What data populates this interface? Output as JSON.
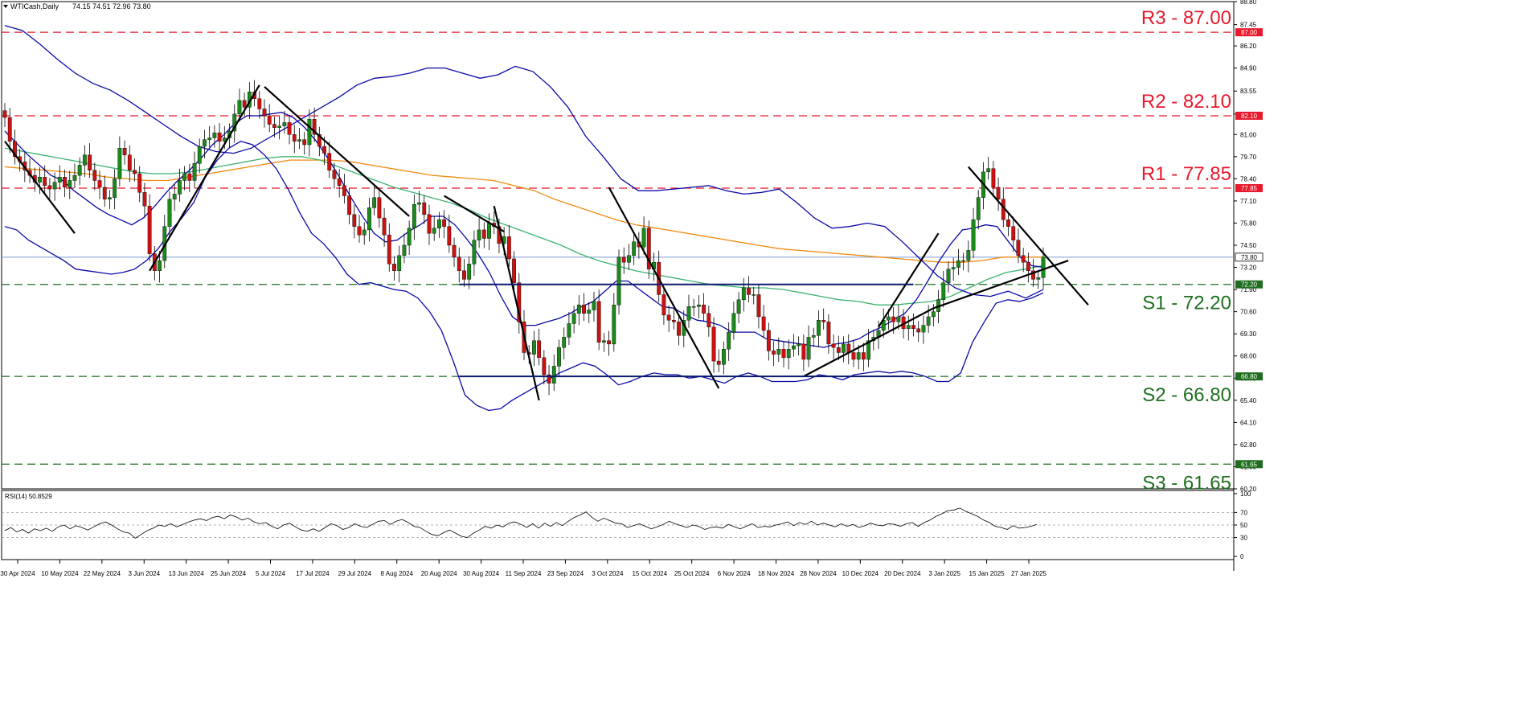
{
  "header": {
    "symbol": "WTICash,Daily",
    "ohlc": "74.15 74.51 72.96 73.80"
  },
  "rsi_header": {
    "label": "RSI(14) 50.8529"
  },
  "colors": {
    "candle_up": "#1a8a1a",
    "candle_down": "#cc1111",
    "resistance": "#e8192c",
    "support": "#1f6e1f",
    "bollinger": "#0a0aa8",
    "ma_orange": "#f08a10",
    "ma_green": "#3cb371",
    "rsi_line": "#000000",
    "price_marker": "#1f5fbf"
  },
  "chart_data": [
    {
      "type": "candlestick",
      "title": "WTICash,Daily",
      "ylim": [
        60.2,
        88.8
      ],
      "y_ticks": [
        "88.80",
        "87.45",
        "86.20",
        "84.90",
        "83.55",
        "82.20",
        "81.00",
        "79.70",
        "78.40",
        "77.10",
        "75.80",
        "74.50",
        "73.20",
        "71.90",
        "70.60",
        "69.30",
        "68.00",
        "66.70",
        "65.40",
        "64.10",
        "62.80",
        "61.50",
        "60.20"
      ],
      "x_ticks": [
        "30 Apr 2024",
        "10 May 2024",
        "22 May 2024",
        "3 Jun 2024",
        "13 Jun 2024",
        "25 Jun 2024",
        "5 Jul 2024",
        "17 Jul 2024",
        "29 Jul 2024",
        "8 Aug 2024",
        "20 Aug 2024",
        "30 Aug 2024",
        "11 Sep 2024",
        "23 Sep 2024",
        "3 Oct 2024",
        "15 Oct 2024",
        "25 Oct 2024",
        "6 Nov 2024",
        "18 Nov 2024",
        "28 Nov 2024",
        "10 Dec 2024",
        "20 Dec 2024",
        "3 Jan 2025",
        "15 Jan 2025",
        "27 Jan 2025"
      ],
      "levels": [
        {
          "label": "R3 - 87.00",
          "value": 87.0,
          "tag": "87.00",
          "kind": "resistance"
        },
        {
          "label": "R2 - 82.10",
          "value": 82.1,
          "tag": "82.10",
          "kind": "resistance"
        },
        {
          "label": "R1 - 77.85",
          "value": 77.85,
          "tag": "77.85",
          "kind": "resistance"
        },
        {
          "label": "S1 - 72.20",
          "value": 72.2,
          "tag": "72.20",
          "kind": "support"
        },
        {
          "label": "S2 - 66.80",
          "value": 66.8,
          "tag": "66.80",
          "kind": "support"
        },
        {
          "label": "S3 - 61.65",
          "value": 61.65,
          "tag": "61.65",
          "kind": "support"
        }
      ],
      "current_price": {
        "value": 73.8,
        "tag": "73.80"
      },
      "series": [
        {
          "name": "price",
          "values": [
            82.0,
            80.6,
            79.7,
            79.4,
            78.9,
            78.6,
            78.2,
            78.5,
            78.0,
            77.8,
            78.2,
            78.5,
            77.9,
            78.3,
            78.6,
            79.2,
            79.8,
            78.9,
            78.3,
            77.9,
            77.2,
            77.3,
            78.4,
            80.2,
            79.8,
            78.9,
            78.7,
            77.6,
            76.8,
            74.0,
            73.0,
            73.6,
            75.6,
            77.2,
            77.5,
            78.3,
            78.7,
            78.3,
            79.3,
            80.3,
            80.7,
            80.8,
            81.1,
            80.6,
            80.8,
            81.2,
            82.2,
            83.0,
            82.6,
            83.5,
            83.1,
            82.5,
            82.1,
            81.6,
            81.4,
            81.5,
            81.7,
            81.0,
            80.6,
            80.7,
            80.4,
            81.9,
            81.0,
            80.3,
            79.9,
            78.9,
            78.4,
            78.0,
            77.4,
            76.3,
            75.6,
            75.1,
            75.4,
            76.7,
            77.3,
            76.1,
            75.1,
            73.4,
            73.0,
            73.9,
            74.5,
            75.5,
            76.9,
            77.0,
            76.3,
            75.2,
            75.5,
            76.0,
            75.6,
            74.5,
            73.8,
            73.0,
            72.5,
            73.4,
            74.8,
            75.4,
            74.9,
            75.8,
            75.6,
            74.6,
            75.0,
            73.7,
            72.3,
            70.0,
            68.2,
            68.1,
            68.9,
            67.9,
            66.9,
            66.4,
            67.4,
            68.5,
            69.1,
            69.9,
            70.5,
            71.0,
            70.5,
            70.7,
            71.2,
            68.8,
            68.9,
            68.7,
            71.0,
            73.8,
            73.5,
            73.9,
            74.7,
            74.4,
            75.5,
            73.1,
            73.5,
            71.6,
            70.4,
            70.1,
            70.0,
            69.2,
            70.1,
            70.9,
            70.9,
            71.0,
            70.5,
            69.7,
            67.7,
            67.5,
            68.4,
            69.4,
            70.5,
            71.3,
            72.0,
            71.6,
            71.6,
            70.3,
            69.5,
            68.3,
            68.1,
            68.4,
            67.9,
            68.4,
            68.6,
            68.7,
            67.8,
            69.1,
            69.2,
            70.1,
            70.0,
            68.7,
            68.5,
            68.2,
            68.7,
            68.2,
            67.8,
            68.2,
            67.8,
            68.9,
            69.1,
            69.5,
            70.1,
            70.3,
            70.0,
            70.3,
            69.6,
            69.8,
            69.6,
            69.4,
            69.8,
            70.3,
            70.6,
            71.3,
            72.3,
            73.1,
            73.2,
            73.6,
            73.6,
            74.2,
            76.0,
            77.3,
            78.8,
            79.0,
            77.9,
            77.2,
            76.0,
            75.6,
            74.8,
            73.9,
            73.5,
            73.0,
            72.5,
            72.6,
            73.8
          ]
        },
        {
          "name": "bollinger_upper",
          "values": [
            87.4,
            87.1,
            86.3,
            85.4,
            84.6,
            84.0,
            83.6,
            83.0,
            82.3,
            81.6,
            80.9,
            80.3,
            80.0,
            79.9,
            80.2,
            80.8,
            81.4,
            82.0,
            82.6,
            83.2,
            83.9,
            84.3,
            84.4,
            84.6,
            84.9,
            84.9,
            84.6,
            84.3,
            84.5,
            85.0,
            84.7,
            83.8,
            82.6,
            80.9,
            79.7,
            78.4,
            77.7,
            77.7,
            77.8,
            77.9,
            78.0,
            77.7,
            77.5,
            77.6,
            77.8,
            77.0,
            76.1,
            75.5,
            75.6,
            75.8,
            75.6,
            74.7,
            73.7,
            72.7,
            72.0,
            71.6,
            71.5,
            71.8,
            71.4,
            71.9
          ]
        },
        {
          "name": "bollinger_middle",
          "values": [
            81.2,
            80.5,
            79.8,
            79.2,
            78.6,
            78.3,
            77.7,
            77.2,
            76.7,
            76.3,
            76.0,
            75.7,
            76.1,
            76.8,
            77.6,
            78.3,
            78.9,
            79.6,
            80.4,
            81.0,
            81.7,
            82.1,
            82.1,
            82.2,
            82.3,
            82.0,
            81.4,
            80.6,
            79.6,
            78.5,
            77.3,
            76.2,
            75.2,
            74.7,
            74.8,
            75.3,
            75.7,
            76.2,
            76.2,
            75.7,
            74.9,
            74.0,
            72.9,
            71.5,
            70.3,
            69.8,
            69.8,
            70.0,
            70.2,
            70.5,
            70.9,
            71.2,
            71.8,
            72.4,
            72.4,
            71.9,
            71.4,
            70.9,
            70.8,
            70.4,
            70.1,
            70.0,
            69.8,
            69.4,
            69.4,
            69.4,
            69.0,
            68.9,
            68.8,
            68.7,
            68.6,
            68.5,
            68.7,
            68.8,
            69.0,
            69.4,
            69.7,
            70.1,
            70.5,
            71.3,
            72.4,
            73.6,
            74.6,
            75.4,
            75.5,
            75.7,
            75.6,
            74.7,
            73.8,
            73.3,
            73.2
          ]
        },
        {
          "name": "bollinger_lower",
          "values": [
            75.6,
            75.4,
            74.8,
            74.4,
            74.0,
            73.6,
            73.1,
            73.0,
            72.9,
            72.8,
            72.9,
            73.1,
            73.6,
            74.3,
            75.3,
            76.1,
            77.0,
            78.5,
            79.5,
            80.2,
            80.6,
            80.4,
            79.8,
            79.0,
            77.8,
            76.4,
            75.2,
            74.6,
            73.8,
            72.8,
            72.2,
            72.3,
            72.1,
            71.9,
            71.8,
            71.4,
            70.6,
            69.5,
            67.7,
            65.7,
            65.1,
            64.8,
            64.9,
            65.4,
            65.8,
            66.2,
            66.6,
            67.0,
            67.3,
            67.6,
            67.4,
            66.9,
            66.3,
            66.5,
            66.8,
            67.0,
            66.9,
            66.9,
            66.7,
            66.8,
            66.6,
            66.4,
            66.8,
            67.0,
            66.8,
            66.5,
            66.5,
            66.5,
            66.6,
            66.9,
            66.8,
            66.6,
            66.9,
            67.0,
            67.1,
            67.0,
            67.1,
            67.0,
            66.8,
            66.5,
            66.5,
            67.0,
            68.8,
            70.0,
            71.1,
            71.3,
            71.2,
            71.4,
            71.7
          ]
        },
        {
          "name": "ma_orange",
          "values": [
            79.1,
            79.0,
            78.9,
            78.8,
            78.7,
            78.5,
            78.4,
            78.3,
            78.3,
            78.5,
            78.7,
            78.9,
            79.1,
            79.3,
            79.5,
            79.5,
            79.5,
            79.4,
            79.2,
            79.0,
            78.8,
            78.6,
            78.5,
            78.4,
            78.3,
            78.0,
            77.7,
            77.2,
            76.8,
            76.4,
            76.0,
            75.7,
            75.5,
            75.3,
            75.1,
            74.9,
            74.7,
            74.5,
            74.3,
            74.2,
            74.1,
            74.0,
            73.9,
            73.8,
            73.7,
            73.6,
            73.5,
            73.5,
            73.6,
            73.8,
            73.8,
            73.8
          ]
        },
        {
          "name": "ma_green",
          "values": [
            80.2,
            80.0,
            79.8,
            79.6,
            79.4,
            79.2,
            79.0,
            78.8,
            78.7,
            78.7,
            78.8,
            79.0,
            79.2,
            79.4,
            79.6,
            79.7,
            79.7,
            79.5,
            79.1,
            78.7,
            78.3,
            77.9,
            77.6,
            77.3,
            77.0,
            76.6,
            76.1,
            75.7,
            75.3,
            74.9,
            74.5,
            74.0,
            73.6,
            73.3,
            73.0,
            72.8,
            72.6,
            72.4,
            72.2,
            72.1,
            72.0,
            72.0,
            71.9,
            71.7,
            71.5,
            71.3,
            71.2,
            71.0,
            71.0,
            71.1,
            71.2,
            71.5,
            72.0,
            72.5,
            72.9,
            73.1,
            73.3
          ]
        }
      ],
      "annotations": [
        {
          "type": "trendline",
          "from": [
            0,
            80.6
          ],
          "to": [
            14,
            75.2
          ]
        },
        {
          "type": "trendline",
          "from": [
            29,
            73.0
          ],
          "to": [
            51,
            83.9
          ]
        },
        {
          "type": "trendline",
          "from": [
            52,
            83.8
          ],
          "to": [
            81,
            76.2
          ]
        },
        {
          "type": "trendline",
          "from": [
            88,
            77.4
          ],
          "to": [
            100,
            75.3
          ]
        },
        {
          "type": "trendline",
          "from": [
            98,
            76.8
          ],
          "to": [
            107,
            65.4
          ]
        },
        {
          "type": "trendline",
          "from": [
            121,
            77.9
          ],
          "to": [
            143,
            66.1
          ]
        },
        {
          "type": "trendline",
          "from": [
            160,
            66.8
          ],
          "to": [
            186,
            70.8
          ]
        },
        {
          "type": "trendline",
          "from": [
            175,
            69.7
          ],
          "to": [
            187,
            75.2
          ]
        },
        {
          "type": "trendline",
          "from": [
            193,
            79.1
          ],
          "to": [
            217,
            71.0
          ]
        },
        {
          "type": "trendline",
          "from": [
            186,
            70.8
          ],
          "to": [
            213,
            73.6
          ]
        },
        {
          "type": "range_line",
          "from": [
            91,
            72.2
          ],
          "to": [
            182,
            72.2
          ]
        },
        {
          "type": "range_line",
          "from": [
            91,
            66.8
          ],
          "to": [
            182,
            66.8
          ]
        }
      ]
    },
    {
      "type": "line",
      "title": "RSI(14) 50.8529",
      "ylim": [
        0,
        100
      ],
      "y_ticks": [
        "100",
        "70",
        "50",
        "30",
        "0"
      ],
      "series": [
        {
          "name": "RSI(14)",
          "values": [
            41,
            46,
            39,
            43,
            37,
            44,
            41,
            45,
            40,
            47,
            50,
            44,
            49,
            46,
            42,
            47,
            52,
            55,
            50,
            44,
            39,
            37,
            29,
            35,
            41,
            45,
            50,
            48,
            52,
            47,
            51,
            55,
            58,
            60,
            57,
            62,
            64,
            60,
            66,
            63,
            58,
            61,
            55,
            52,
            54,
            48,
            44,
            50,
            53,
            47,
            42,
            40,
            44,
            40,
            46,
            52,
            49,
            43,
            46,
            52,
            48,
            46,
            51,
            56,
            57,
            51,
            56,
            59,
            54,
            48,
            46,
            40,
            35,
            33,
            38,
            42,
            37,
            32,
            30,
            37,
            42,
            48,
            45,
            50,
            47,
            53,
            55,
            51,
            46,
            52,
            45,
            53,
            48,
            54,
            49,
            56,
            62,
            66,
            71,
            62,
            56,
            61,
            57,
            53,
            52,
            46,
            49,
            52,
            48,
            44,
            47,
            51,
            56,
            52,
            49,
            46,
            50,
            48,
            43,
            46,
            47,
            45,
            51,
            47,
            44,
            48,
            52,
            46,
            48,
            47,
            50,
            52,
            55,
            49,
            54,
            51,
            56,
            50,
            53,
            50,
            47,
            52,
            48,
            51,
            46,
            49,
            53,
            50,
            49,
            52,
            51,
            48,
            52,
            54,
            48,
            54,
            58,
            64,
            68,
            73,
            74,
            77,
            72,
            68,
            64,
            58,
            54,
            48,
            46,
            43,
            49,
            45,
            46,
            48,
            50.9
          ]
        }
      ]
    }
  ]
}
